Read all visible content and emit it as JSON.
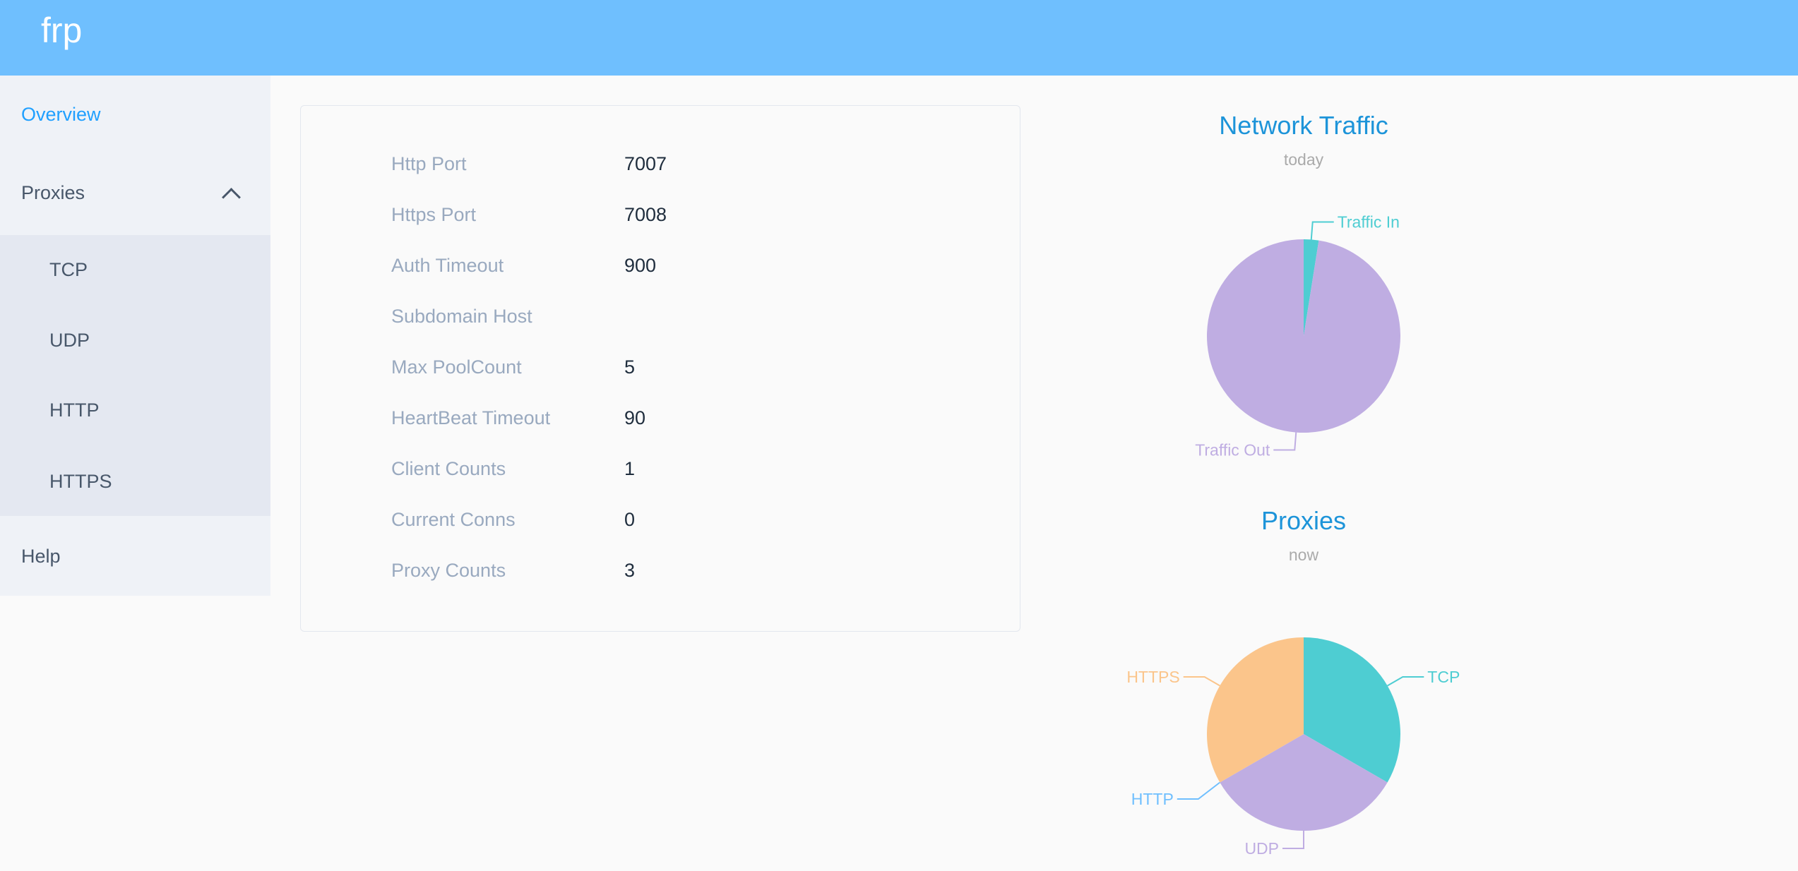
{
  "header": {
    "logo": "frp",
    "color": "#6fbffe"
  },
  "sidebar": {
    "items": [
      {
        "label": "Overview",
        "active": true
      },
      {
        "label": "Proxies",
        "expanded": true,
        "icon": "chevron-up-icon",
        "children": [
          {
            "label": "TCP"
          },
          {
            "label": "UDP"
          },
          {
            "label": "HTTP"
          },
          {
            "label": "HTTPS"
          }
        ]
      },
      {
        "label": "Help"
      }
    ]
  },
  "server_info": [
    {
      "label": "Http Port",
      "value": "7007"
    },
    {
      "label": "Https Port",
      "value": "7008"
    },
    {
      "label": "Auth Timeout",
      "value": "900"
    },
    {
      "label": "Subdomain Host",
      "value": ""
    },
    {
      "label": "Max PoolCount",
      "value": "5"
    },
    {
      "label": "HeartBeat Timeout",
      "value": "90"
    },
    {
      "label": "Client Counts",
      "value": "1"
    },
    {
      "label": "Current Conns",
      "value": "0"
    },
    {
      "label": "Proxy Counts",
      "value": "3"
    }
  ],
  "chart_data": [
    {
      "type": "pie",
      "title": "Network Traffic",
      "subtitle": "today",
      "categories": [
        "Traffic In",
        "Traffic Out"
      ],
      "values": [
        2.5,
        97.5
      ],
      "value_unit": "percent (estimated)",
      "colors": [
        "#4ecdd2",
        "#bfade2"
      ]
    },
    {
      "type": "pie",
      "title": "Proxies",
      "subtitle": "now",
      "categories": [
        "TCP",
        "UDP",
        "HTTP",
        "HTTPS"
      ],
      "values": [
        1,
        1,
        0,
        1
      ],
      "colors": [
        "#4ecdd2",
        "#bfade2",
        "#6fbffe",
        "#fbc58b"
      ]
    }
  ],
  "title_color": "#1d94d9"
}
